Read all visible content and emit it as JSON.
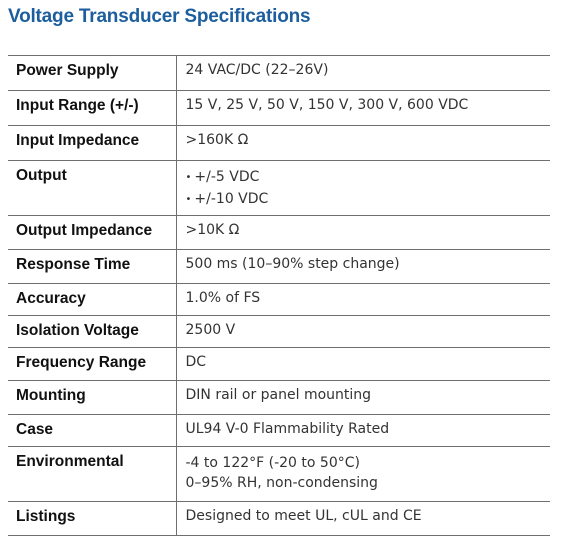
{
  "title": "Voltage Transducer Specifications",
  "specs": [
    {
      "label": "Power Supply",
      "value": "24 VAC/DC (22–26V)"
    },
    {
      "label": "Input Range (+/-)",
      "value": "15 V, 25 V, 50 V, 150 V, 300 V, 600 VDC"
    },
    {
      "label": "Input Impedance",
      "value": ">160K Ω"
    },
    {
      "label": "Output",
      "bullets": [
        "+/-5 VDC",
        "+/-10 VDC"
      ]
    },
    {
      "label": "Output Impedance",
      "value": ">10K Ω"
    },
    {
      "label": "Response Time",
      "value": "500 ms (10–90% step change)"
    },
    {
      "label": "Accuracy",
      "value": "1.0% of FS"
    },
    {
      "label": "Isolation Voltage",
      "value": "2500 V"
    },
    {
      "label": "Frequency Range",
      "value": "DC"
    },
    {
      "label": "Mounting",
      "value": "DIN rail or panel mounting"
    },
    {
      "label": "Case",
      "value": "UL94 V-0 Flammability Rated"
    },
    {
      "label": "Environmental",
      "lines": [
        "-4 to 122°F (-20 to 50°C)",
        "0–95% RH, non-condensing"
      ]
    },
    {
      "label": "Listings",
      "value": "Designed to meet UL, cUL and CE"
    }
  ]
}
